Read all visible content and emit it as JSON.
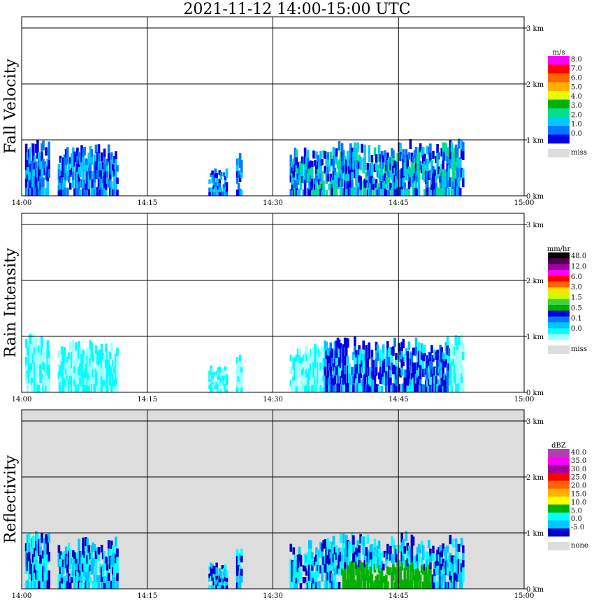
{
  "title": "2021-11-12   14:00-15:00 UTC",
  "chart_data": [
    {
      "type": "heatmap",
      "ylabel": "Fall Velocity",
      "xlim": [
        "14:00",
        "15:00"
      ],
      "x_ticks": [
        "14:00",
        "14:15",
        "14:30",
        "14:45",
        "15:00"
      ],
      "ylim_km": [
        0,
        3.1
      ],
      "y_ticks": [
        "0 km",
        "1 km",
        "2 km",
        "3 km"
      ],
      "background": "#ffffff",
      "colorbar": {
        "unit": "m/s",
        "labels": [
          "8.0",
          "7.0",
          "6.0",
          "5.0",
          "4.0",
          "3.0",
          "2.0",
          "1.0",
          "0.0"
        ],
        "colors": [
          "#ff00ff",
          "#ff0000",
          "#ff6600",
          "#ffb000",
          "#e6ff00",
          "#00b000",
          "#00e08c",
          "#00c8ff",
          "#0078ff",
          "#0000e6"
        ],
        "missing_label": "miss",
        "missing_color": "#dddddd"
      }
    },
    {
      "type": "heatmap",
      "ylabel": "Rain Intensity",
      "xlim": [
        "14:00",
        "15:00"
      ],
      "x_ticks": [
        "14:00",
        "14:15",
        "14:30",
        "14:45",
        "15:00"
      ],
      "ylim_km": [
        0,
        3.1
      ],
      "y_ticks": [
        "0 km",
        "1 km",
        "2 km",
        "3 km"
      ],
      "background": "#ffffff",
      "colorbar": {
        "unit": "mm/hr",
        "labels": [
          "48.0",
          "12.0",
          "6.0",
          "3.0",
          "1.5",
          "0.5",
          "0.1",
          "0.0"
        ],
        "colors": [
          "#000000",
          "#500050",
          "#a000a0",
          "#ff00ff",
          "#ff0000",
          "#ff6600",
          "#ffe000",
          "#c8ff00",
          "#40d040",
          "#00b000",
          "#0000e6",
          "#0078ff",
          "#00c8ff",
          "#00ffff",
          "#a0ffff"
        ],
        "missing_label": "miss",
        "missing_color": "#dddddd"
      }
    },
    {
      "type": "heatmap",
      "ylabel": "Reflectivity",
      "xlim": [
        "14:00",
        "15:00"
      ],
      "x_ticks": [
        "14:00",
        "14:15",
        "14:30",
        "14:45",
        "15:00"
      ],
      "ylim_km": [
        0,
        3.1
      ],
      "y_ticks": [
        "0 km",
        "1 km",
        "2 km",
        "3 km"
      ],
      "background": "#dddddd",
      "colorbar": {
        "unit": "dBZ",
        "labels": [
          "40.0",
          "35.0",
          "30.0",
          "25.0",
          "20.0",
          "15.0",
          "10.0",
          "5.0",
          "0.0",
          "-5.0"
        ],
        "colors": [
          "#b040b0",
          "#ff00ff",
          "#a000a0",
          "#ff0000",
          "#ff6600",
          "#ffb000",
          "#ffff00",
          "#00b000",
          "#00ffff",
          "#00c8ff",
          "#0000c8"
        ],
        "missing_label": "none",
        "missing_color": "#dddddd"
      }
    }
  ]
}
